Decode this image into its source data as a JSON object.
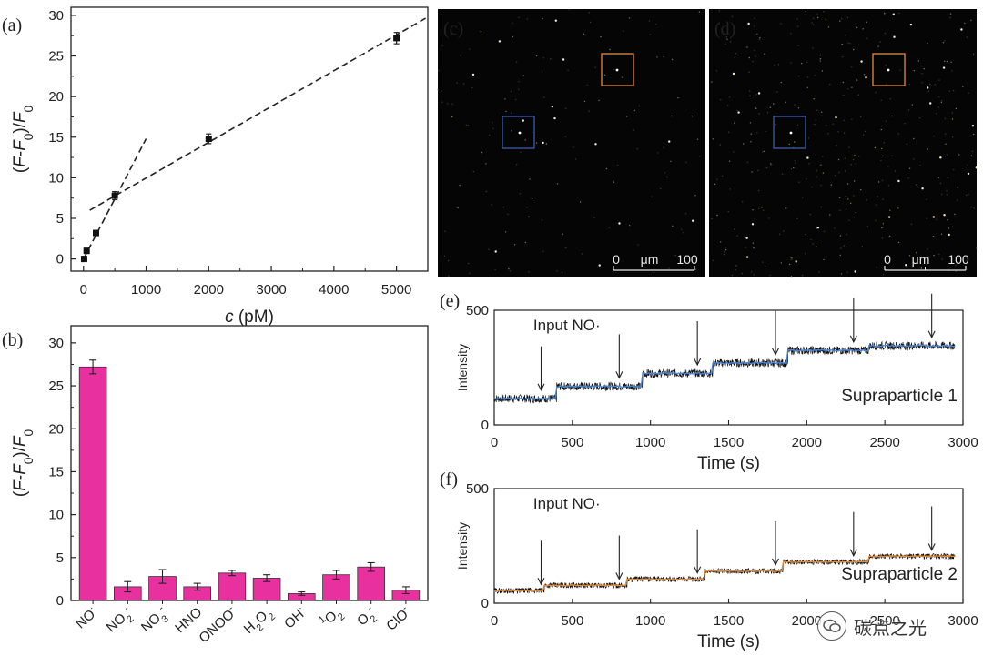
{
  "figure": {
    "watermark": "碳点之光"
  },
  "chart_data": [
    {
      "id": "a",
      "panel_label": "(a)",
      "type": "scatter",
      "xlabel": "c (pM)",
      "ylabel": "(F-F0)/F0",
      "xlim": [
        -200,
        5500
      ],
      "ylim": [
        -1.5,
        31
      ],
      "xticks": [
        0,
        1000,
        2000,
        3000,
        4000,
        5000
      ],
      "yticks": [
        0,
        5,
        10,
        15,
        20,
        25,
        30
      ],
      "points": [
        {
          "x": 10,
          "y": 0.0,
          "err": 0.3
        },
        {
          "x": 50,
          "y": 1.0,
          "err": 0.3
        },
        {
          "x": 200,
          "y": 3.2,
          "err": 0.3
        },
        {
          "x": 500,
          "y": 7.8,
          "err": 0.5
        },
        {
          "x": 2000,
          "y": 14.8,
          "err": 0.6
        },
        {
          "x": 5000,
          "y": 27.2,
          "err": 0.7
        }
      ],
      "fits": [
        {
          "x": [
            0,
            1000
          ],
          "y": [
            0,
            14.8
          ],
          "style": "dashed"
        },
        {
          "x": [
            100,
            5500
          ],
          "y": [
            6.0,
            29.8
          ],
          "style": "dashed"
        }
      ]
    },
    {
      "id": "b",
      "panel_label": "(b)",
      "type": "bar",
      "ylabel": "(F-F0)/F0",
      "ylim": [
        0,
        32
      ],
      "yticks": [
        0,
        5,
        10,
        15,
        20,
        25,
        30
      ],
      "bar_color": "#e8319f",
      "categories": [
        "NO·",
        "NO2-",
        "NO3-",
        "HNO",
        "ONOO-",
        "H2O2",
        "OH·",
        "1O2",
        "O2-",
        "ClO-"
      ],
      "values": [
        27.2,
        1.6,
        2.8,
        1.6,
        3.2,
        2.6,
        0.8,
        3.0,
        3.9,
        1.2
      ],
      "errors": [
        0.8,
        0.6,
        0.8,
        0.4,
        0.3,
        0.4,
        0.2,
        0.5,
        0.5,
        0.4
      ]
    },
    {
      "id": "e",
      "panel_label": "(e)",
      "type": "line",
      "xlabel": "Time (s)",
      "ylabel": "Intensity",
      "xlim": [
        0,
        3000
      ],
      "ylim": [
        0,
        500
      ],
      "xticks": [
        0,
        500,
        1000,
        1500,
        2000,
        2500,
        3000
      ],
      "yticks": [
        0,
        500
      ],
      "series_label": "Supraparticle 1",
      "annotation": "Input NO·",
      "arrow_times": [
        300,
        800,
        1300,
        1800,
        2300,
        2800
      ],
      "fit_color": "#4a86d8",
      "steps": [
        {
          "t": 0,
          "level": 115
        },
        {
          "t": 400,
          "level": 168
        },
        {
          "t": 950,
          "level": 225
        },
        {
          "t": 1400,
          "level": 270
        },
        {
          "t": 1880,
          "level": 325
        },
        {
          "t": 2400,
          "level": 345
        },
        {
          "t": 2950,
          "level": 345
        }
      ],
      "noise": 18
    },
    {
      "id": "f",
      "panel_label": "(f)",
      "type": "line",
      "xlabel": "Time (s)",
      "ylabel": "Intensity",
      "xlim": [
        0,
        3000
      ],
      "ylim": [
        0,
        500
      ],
      "xticks": [
        0,
        500,
        1000,
        1500,
        2000,
        2500,
        3000
      ],
      "yticks": [
        0,
        500
      ],
      "series_label": "Supraparticle 2",
      "annotation": "Input NO·",
      "arrow_times": [
        300,
        800,
        1300,
        1800,
        2300,
        2800
      ],
      "fit_color": "#e58a2f",
      "steps": [
        {
          "t": 0,
          "level": 55
        },
        {
          "t": 320,
          "level": 78
        },
        {
          "t": 850,
          "level": 105
        },
        {
          "t": 1350,
          "level": 140
        },
        {
          "t": 1850,
          "level": 180
        },
        {
          "t": 2400,
          "level": 205
        },
        {
          "t": 2950,
          "level": 205
        }
      ],
      "noise": 12
    }
  ],
  "images": [
    {
      "id": "c",
      "panel_label": "(c)",
      "scale_bar": {
        "start": "0",
        "unit": "μm",
        "end": "100"
      },
      "roi_colors": [
        "#e38a3c",
        "#3c5ea8"
      ]
    },
    {
      "id": "d",
      "panel_label": "(d)",
      "scale_bar": {
        "start": "0",
        "unit": "μm",
        "end": "100"
      },
      "roi_colors": [
        "#e38a3c",
        "#3c5ea8"
      ]
    }
  ]
}
